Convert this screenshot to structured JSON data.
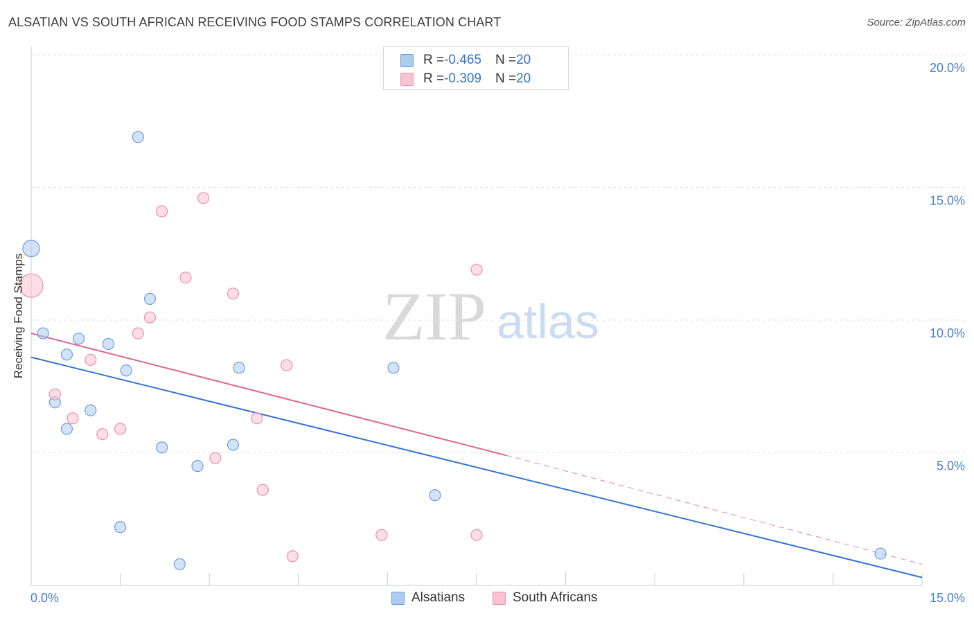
{
  "header": {
    "title": "ALSATIAN VS SOUTH AFRICAN RECEIVING FOOD STAMPS CORRELATION CHART",
    "source": "Source: ZipAtlas.com"
  },
  "watermark": {
    "zip": "ZIP",
    "atlas": "atlas"
  },
  "legend_top": {
    "rows": [
      {
        "r_label": "R = ",
        "r_value": "-0.465",
        "n_label": "N = ",
        "n_value": "20",
        "color": "#aecbf0",
        "border": "#6a9fe0"
      },
      {
        "r_label": "R = ",
        "r_value": "-0.309",
        "n_label": "N = ",
        "n_value": "20",
        "color": "#f9c3d2",
        "border": "#ef8fab"
      }
    ]
  },
  "legend_bottom": {
    "items": [
      {
        "label": "Alsatians",
        "color": "#aecbf0",
        "border": "#6a9fe0"
      },
      {
        "label": "South Africans",
        "color": "#f9c3d2",
        "border": "#ef8fab"
      }
    ]
  },
  "chart_data": {
    "type": "scatter",
    "title": "ALSATIAN VS SOUTH AFRICAN RECEIVING FOOD STAMPS CORRELATION CHART",
    "xlabel": "",
    "ylabel": "Receiving Food Stamps",
    "xlim": [
      0,
      15
    ],
    "ylim": [
      0,
      20
    ],
    "x_tick_labels": [
      "0.0%",
      "15.0%"
    ],
    "y_tick_labels": [
      "5.0%",
      "10.0%",
      "15.0%",
      "20.0%"
    ],
    "y_ticks": [
      5,
      10,
      15,
      20
    ],
    "grid": true,
    "series": [
      {
        "name": "Alsatians",
        "color": "#aecbf0",
        "stroke": "#6a9fe0",
        "line_color": "#3474d4",
        "points": [
          {
            "x": 0.0,
            "y": 12.7,
            "big": true
          },
          {
            "x": 0.2,
            "y": 9.5
          },
          {
            "x": 0.4,
            "y": 6.9
          },
          {
            "x": 0.6,
            "y": 8.7
          },
          {
            "x": 0.8,
            "y": 9.3
          },
          {
            "x": 0.6,
            "y": 5.9
          },
          {
            "x": 1.0,
            "y": 6.6
          },
          {
            "x": 1.3,
            "y": 9.1
          },
          {
            "x": 1.8,
            "y": 16.9
          },
          {
            "x": 1.6,
            "y": 8.1
          },
          {
            "x": 2.0,
            "y": 10.8
          },
          {
            "x": 1.5,
            "y": 2.2
          },
          {
            "x": 2.2,
            "y": 5.2
          },
          {
            "x": 2.5,
            "y": 0.8
          },
          {
            "x": 2.8,
            "y": 4.5
          },
          {
            "x": 3.4,
            "y": 5.3
          },
          {
            "x": 3.5,
            "y": 8.2
          },
          {
            "x": 6.1,
            "y": 8.2
          },
          {
            "x": 6.8,
            "y": 3.4
          },
          {
            "x": 14.3,
            "y": 1.2
          }
        ],
        "trend": {
          "x1": 0,
          "y1": 8.6,
          "x2": 15,
          "y2": 0.3
        }
      },
      {
        "name": "South Africans",
        "color": "#f9c3d2",
        "stroke": "#ef8fab",
        "line_color": "#e0688f",
        "points": [
          {
            "x": 0.0,
            "y": 11.3,
            "big": true
          },
          {
            "x": 0.4,
            "y": 7.2
          },
          {
            "x": 0.7,
            "y": 6.3
          },
          {
            "x": 1.0,
            "y": 8.5
          },
          {
            "x": 1.2,
            "y": 5.7
          },
          {
            "x": 1.5,
            "y": 5.9
          },
          {
            "x": 1.8,
            "y": 9.5
          },
          {
            "x": 2.0,
            "y": 10.1
          },
          {
            "x": 2.2,
            "y": 14.1
          },
          {
            "x": 2.6,
            "y": 11.6
          },
          {
            "x": 2.9,
            "y": 14.6
          },
          {
            "x": 3.1,
            "y": 4.8
          },
          {
            "x": 3.4,
            "y": 11.0
          },
          {
            "x": 3.8,
            "y": 6.3
          },
          {
            "x": 3.9,
            "y": 3.6
          },
          {
            "x": 4.3,
            "y": 8.3
          },
          {
            "x": 4.4,
            "y": 1.1
          },
          {
            "x": 5.9,
            "y": 1.9
          },
          {
            "x": 7.5,
            "y": 11.9
          },
          {
            "x": 7.5,
            "y": 1.9
          }
        ],
        "trend": {
          "x1": 0,
          "y1": 9.5,
          "x2": 8.0,
          "y2": 4.9
        },
        "trend_dashed": {
          "x1": 8.0,
          "y1": 4.9,
          "x2": 15,
          "y2": 0.8
        }
      }
    ]
  }
}
